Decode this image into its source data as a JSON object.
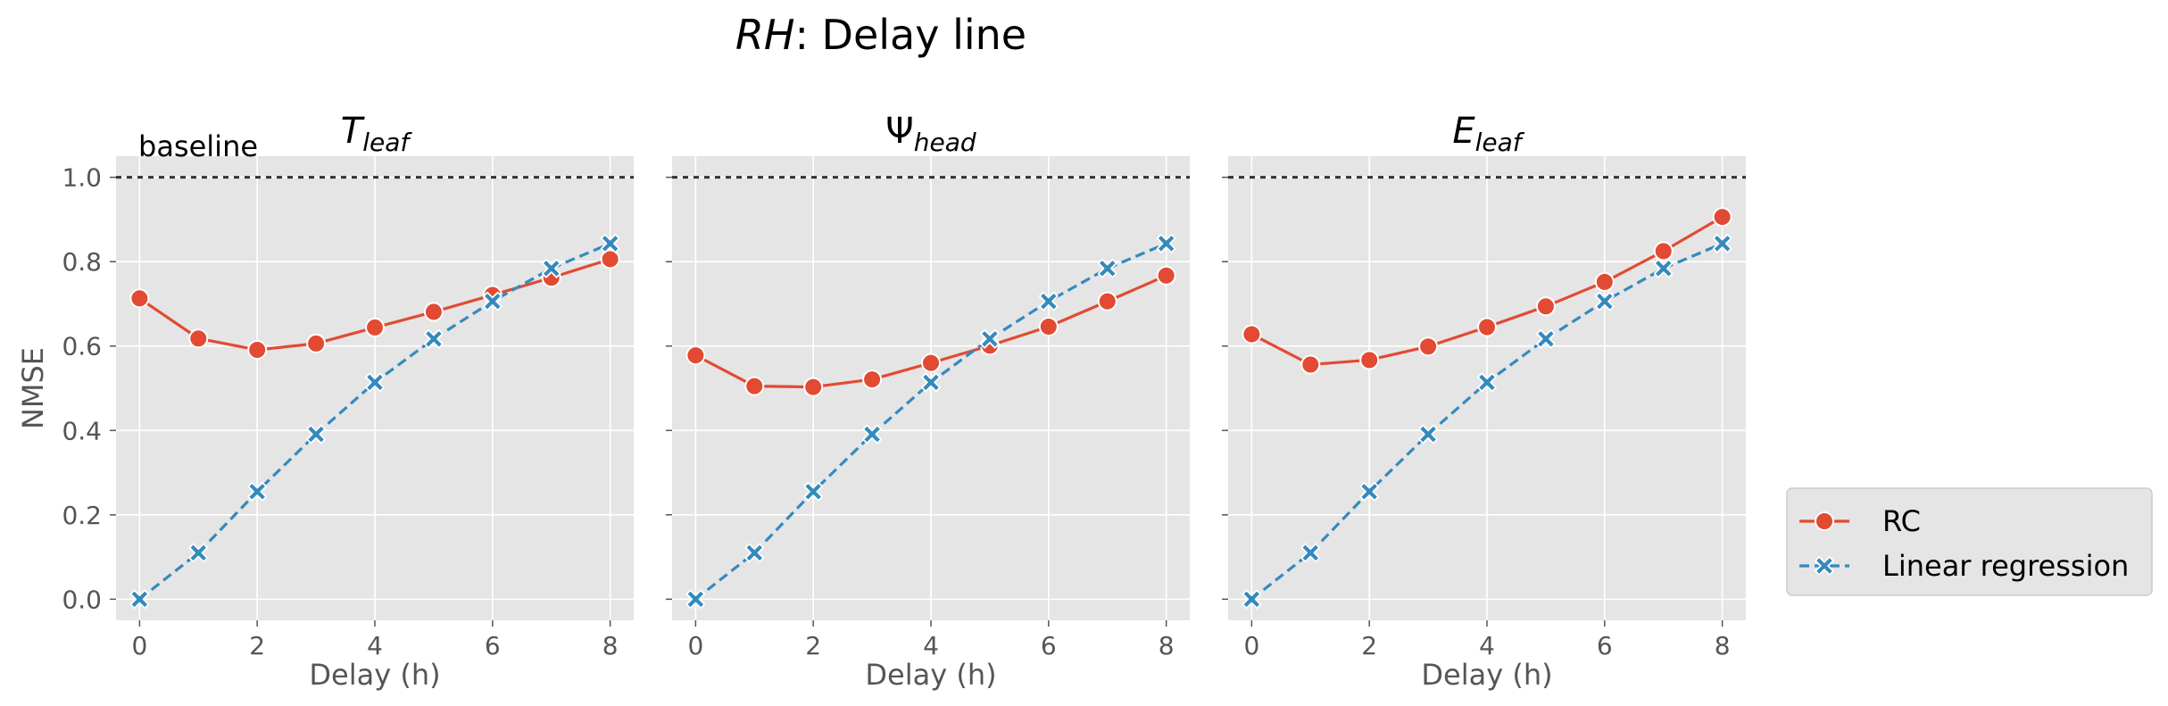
{
  "figure": {
    "title_italic": "RH",
    "title_rest": ": Delay line"
  },
  "colors": {
    "rc": "#E24A33",
    "lr": "#348ABD",
    "panel_bg": "#E5E5E5",
    "grid": "#FFFFFF",
    "baseline": "#333333"
  },
  "chart_data": [
    {
      "type": "line",
      "title_base": "T",
      "title_sub": "leaf",
      "xlabel": "Delay (h)",
      "ylabel": "NMSE",
      "annotation": "baseline",
      "baseline": 1.0,
      "xlim": [
        -0.4,
        8.4
      ],
      "ylim": [
        -0.05,
        1.05
      ],
      "xticks": [
        0,
        2,
        4,
        6,
        8
      ],
      "yticks": [
        0.0,
        0.2,
        0.4,
        0.6,
        0.8,
        1.0
      ],
      "x": [
        0,
        1,
        2,
        3,
        4,
        5,
        6,
        7,
        8
      ],
      "series": [
        {
          "name": "RC",
          "marker": "circle",
          "values": [
            0.713,
            0.618,
            0.591,
            0.606,
            0.644,
            0.681,
            0.721,
            0.762,
            0.806
          ]
        },
        {
          "name": "Linear regression",
          "marker": "x",
          "values": [
            0.0,
            0.11,
            0.255,
            0.391,
            0.514,
            0.617,
            0.706,
            0.784,
            0.843
          ]
        }
      ]
    },
    {
      "type": "line",
      "title_base": "Ψ",
      "title_sub": "head",
      "xlabel": "Delay (h)",
      "ylabel": "",
      "baseline": 1.0,
      "xlim": [
        -0.4,
        8.4
      ],
      "ylim": [
        -0.05,
        1.05
      ],
      "xticks": [
        0,
        2,
        4,
        6,
        8
      ],
      "yticks": [
        0.0,
        0.2,
        0.4,
        0.6,
        0.8,
        1.0
      ],
      "x": [
        0,
        1,
        2,
        3,
        4,
        5,
        6,
        7,
        8
      ],
      "series": [
        {
          "name": "RC",
          "marker": "circle",
          "values": [
            0.578,
            0.505,
            0.503,
            0.521,
            0.56,
            0.601,
            0.646,
            0.706,
            0.767
          ]
        },
        {
          "name": "Linear regression",
          "marker": "x",
          "values": [
            0.0,
            0.11,
            0.255,
            0.391,
            0.514,
            0.617,
            0.706,
            0.784,
            0.843
          ]
        }
      ]
    },
    {
      "type": "line",
      "title_base": "E",
      "title_sub": "leaf",
      "xlabel": "Delay (h)",
      "ylabel": "",
      "baseline": 1.0,
      "xlim": [
        -0.4,
        8.4
      ],
      "ylim": [
        -0.05,
        1.05
      ],
      "xticks": [
        0,
        2,
        4,
        6,
        8
      ],
      "yticks": [
        0.0,
        0.2,
        0.4,
        0.6,
        0.8,
        1.0
      ],
      "x": [
        0,
        1,
        2,
        3,
        4,
        5,
        6,
        7,
        8
      ],
      "series": [
        {
          "name": "RC",
          "marker": "circle",
          "values": [
            0.628,
            0.556,
            0.567,
            0.599,
            0.645,
            0.694,
            0.752,
            0.825,
            0.906
          ]
        },
        {
          "name": "Linear regression",
          "marker": "x",
          "values": [
            0.0,
            0.11,
            0.255,
            0.391,
            0.514,
            0.617,
            0.706,
            0.784,
            0.843
          ]
        }
      ]
    }
  ],
  "legend": {
    "placement": "right",
    "entries": [
      {
        "label": "RC",
        "marker": "circle"
      },
      {
        "label": "Linear regression",
        "marker": "x"
      }
    ]
  }
}
